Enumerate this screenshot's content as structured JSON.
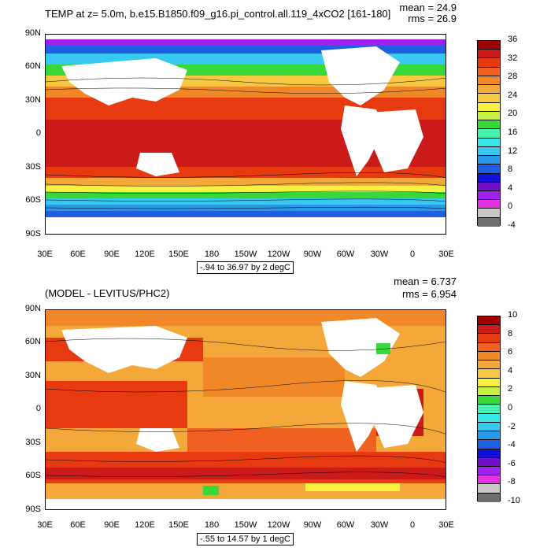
{
  "top": {
    "title": "TEMP at z=   5.0m, b.e15.B1850.f09_g16.pi_control.all.119_4xCO2 [161-180]",
    "mean": "mean = 24.9",
    "rms": "rms = 26.9",
    "range_label": "-.94 to 36.97 by 2 degC",
    "colorbar": {
      "labels": [
        "36",
        "32",
        "28",
        "24",
        "20",
        "16",
        "12",
        "8",
        "4",
        "0",
        "-4"
      ],
      "colors": [
        "#a00000",
        "#cc1a1a",
        "#e83a10",
        "#f06020",
        "#f08828",
        "#f5a83a",
        "#f8c840",
        "#f8f040",
        "#c8f040",
        "#38d838",
        "#48f0b0",
        "#38e8e8",
        "#38c8f0",
        "#2898e8",
        "#2060e0",
        "#1010d8",
        "#7010c8",
        "#a020f0",
        "#e030e0",
        "#c8c8c8",
        "#6e6e6e"
      ]
    }
  },
  "bottom": {
    "title": "(MODEL - LEVITUS/PHC2)",
    "mean": "mean = 6.737",
    "rms": "rms = 6.954",
    "range_label": "-.55 to 14.57 by 1 degC",
    "colorbar": {
      "labels": [
        "10",
        "8",
        "6",
        "4",
        "2",
        "0",
        "-2",
        "-4",
        "-6",
        "-8",
        "-10"
      ],
      "colors": [
        "#a00000",
        "#cc1a1a",
        "#e83a10",
        "#f06020",
        "#f08828",
        "#f5a83a",
        "#f8c840",
        "#f8f040",
        "#c8f040",
        "#38d838",
        "#48f0b0",
        "#38e8e8",
        "#38c8f0",
        "#2898e8",
        "#2060e0",
        "#1010d8",
        "#7010c8",
        "#a020f0",
        "#e030e0",
        "#c8c8c8",
        "#6e6e6e"
      ]
    }
  },
  "axes": {
    "lat_labels": [
      "90N",
      "60N",
      "30N",
      "0",
      "30S",
      "60S",
      "90S"
    ],
    "lon_labels": [
      "30E",
      "60E",
      "90E",
      "120E",
      "150E",
      "180",
      "150W",
      "120W",
      "90W",
      "60W",
      "30W",
      "0",
      "30E"
    ]
  }
}
